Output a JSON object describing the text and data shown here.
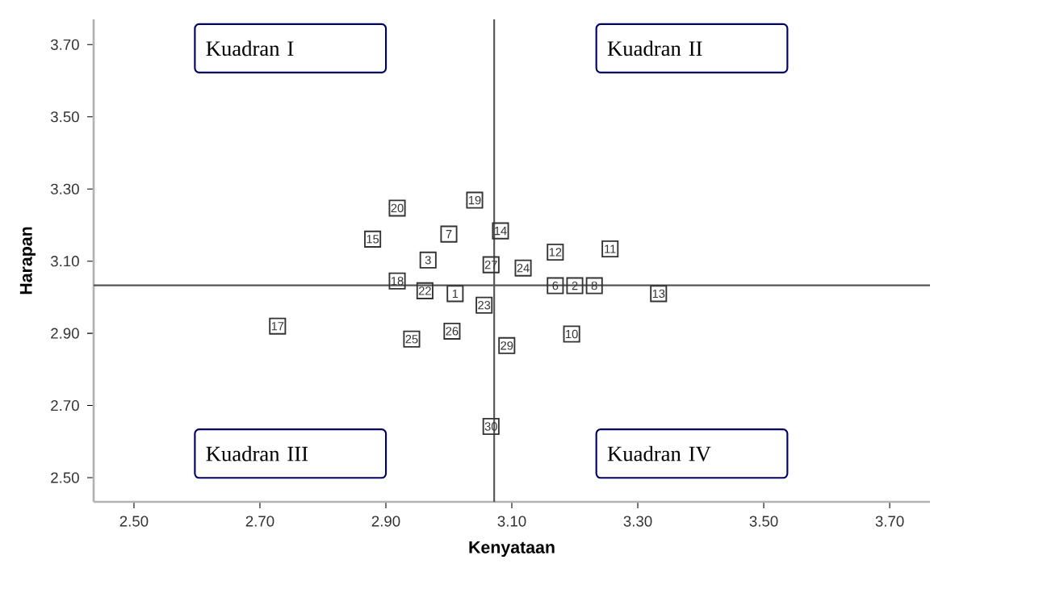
{
  "chart_data": {
    "type": "scatter",
    "xlabel": "Kenyataan",
    "ylabel": "Harapan",
    "marker": "square",
    "grid": false,
    "xlim": [
      2.436,
      3.764
    ],
    "ylim": [
      2.433,
      3.77
    ],
    "xticks": [
      {
        "value": 2.5,
        "label": "2.50"
      },
      {
        "value": 2.7,
        "label": "2.70"
      },
      {
        "value": 2.9,
        "label": "2.90"
      },
      {
        "value": 3.1,
        "label": "3.10"
      },
      {
        "value": 3.3,
        "label": "3.30"
      },
      {
        "value": 3.5,
        "label": "3.50"
      },
      {
        "value": 3.7,
        "label": "3.70"
      }
    ],
    "yticks": [
      {
        "value": 2.5,
        "label": "2.50"
      },
      {
        "value": 2.7,
        "label": "2.70"
      },
      {
        "value": 2.9,
        "label": "2.90"
      },
      {
        "value": 3.1,
        "label": "3.10"
      },
      {
        "value": 3.3,
        "label": "3.30"
      },
      {
        "value": 3.5,
        "label": "3.50"
      },
      {
        "value": 3.7,
        "label": "3.70"
      }
    ],
    "ref_lines": [
      {
        "axis": "x",
        "value": 3.072,
        "color": "#555555"
      },
      {
        "axis": "y",
        "value": 3.033,
        "color": "#555555"
      }
    ],
    "annotations": [
      "Kuadran I",
      "Kuadran II",
      "Kuadran III",
      "Kuadran IV",
      {
        "text": "1",
        "x": 3.01,
        "y": 3.01
      },
      {
        "text": "2",
        "x": 3.2,
        "y": 3.032
      },
      {
        "text": "3",
        "x": 2.967,
        "y": 3.103
      },
      {
        "text": "6",
        "x": 3.169,
        "y": 3.032
      },
      {
        "text": "7",
        "x": 3.0,
        "y": 3.175
      },
      {
        "text": "8",
        "x": 3.231,
        "y": 3.032
      },
      {
        "text": "10",
        "x": 3.195,
        "y": 2.898
      },
      {
        "text": "11",
        "x": 3.256,
        "y": 3.134
      },
      {
        "text": "12",
        "x": 3.169,
        "y": 3.125
      },
      {
        "text": "13",
        "x": 3.333,
        "y": 3.01
      },
      {
        "text": "14",
        "x": 3.082,
        "y": 3.184
      },
      {
        "text": "15",
        "x": 2.879,
        "y": 3.161
      },
      {
        "text": "17",
        "x": 2.728,
        "y": 2.92
      },
      {
        "text": "18",
        "x": 2.918,
        "y": 3.045
      },
      {
        "text": "19",
        "x": 3.041,
        "y": 3.269
      },
      {
        "text": "20",
        "x": 2.918,
        "y": 3.247
      },
      {
        "text": "22",
        "x": 2.962,
        "y": 3.018
      },
      {
        "text": "23",
        "x": 3.056,
        "y": 2.978
      },
      {
        "text": "24",
        "x": 3.118,
        "y": 3.081
      },
      {
        "text": "25",
        "x": 2.941,
        "y": 2.884
      },
      {
        "text": "26",
        "x": 3.005,
        "y": 2.906
      },
      {
        "text": "27",
        "x": 3.067,
        "y": 3.09
      },
      {
        "text": "29",
        "x": 3.092,
        "y": 2.866
      },
      {
        "text": "30",
        "x": 3.067,
        "y": 2.642
      }
    ],
    "series": [
      {
        "color": "#333333",
        "x": [
          3.01,
          3.2,
          2.967,
          3.169,
          3.0,
          3.231,
          3.195,
          3.256,
          3.169,
          3.333,
          3.082,
          2.879,
          2.728,
          2.918,
          3.041,
          2.918,
          2.962,
          3.056,
          3.118,
          2.941,
          3.005,
          3.067,
          3.092,
          3.067
        ],
        "values": [
          3.01,
          3.032,
          3.103,
          3.032,
          3.175,
          3.032,
          2.898,
          3.134,
          3.125,
          3.01,
          3.184,
          3.161,
          2.92,
          3.045,
          3.269,
          3.247,
          3.018,
          2.978,
          3.081,
          2.884,
          2.906,
          3.09,
          2.866,
          2.642
        ]
      }
    ]
  }
}
